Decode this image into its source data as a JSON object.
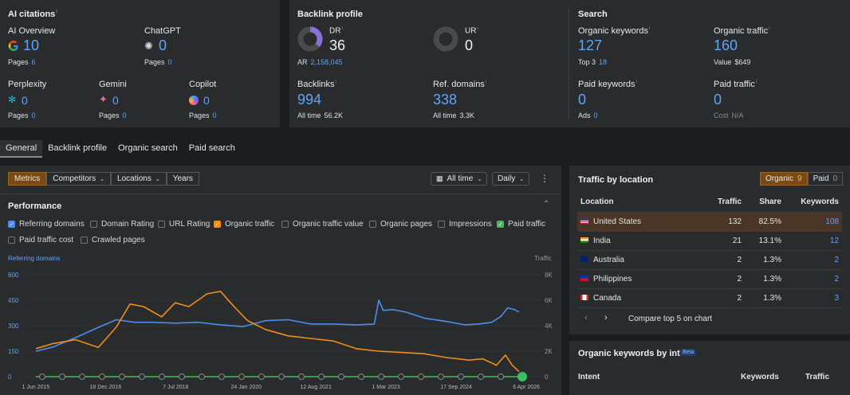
{
  "ai_citations": {
    "title": "AI citations",
    "ai_overview": {
      "label": "AI Overview",
      "value": "10",
      "sub_label": "Pages",
      "sub_value": "6"
    },
    "chatgpt": {
      "label": "ChatGPT",
      "value": "0",
      "sub_label": "Pages",
      "sub_value": "0"
    },
    "perplexity": {
      "label": "Perplexity",
      "value": "0",
      "sub_label": "Pages",
      "sub_value": "0"
    },
    "gemini": {
      "label": "Gemini",
      "value": "0",
      "sub_label": "Pages",
      "sub_value": "0"
    },
    "copilot": {
      "label": "Copilot",
      "value": "0",
      "sub_label": "Pages",
      "sub_value": "0"
    }
  },
  "backlink_profile": {
    "title": "Backlink profile",
    "dr": {
      "label": "DR",
      "value": "36",
      "fill": 0.36
    },
    "ar": {
      "label": "AR",
      "value": "2,158,045"
    },
    "ur": {
      "label": "UR",
      "value": "0",
      "fill": 0
    },
    "backlinks": {
      "label": "Backlinks",
      "value": "994",
      "sub_label": "All time",
      "sub_value": "56.2K"
    },
    "ref_domains": {
      "label": "Ref. domains",
      "value": "338",
      "sub_label": "All time",
      "sub_value": "3.3K"
    }
  },
  "search": {
    "title": "Search",
    "organic_keywords": {
      "label": "Organic keywords",
      "value": "127",
      "sub_label": "Top 3",
      "sub_value": "18"
    },
    "organic_traffic": {
      "label": "Organic traffic",
      "value": "160",
      "sub_label": "Value",
      "sub_value": "$649"
    },
    "paid_keywords": {
      "label": "Paid keywords",
      "value": "0",
      "sub_label": "Ads",
      "sub_value": "0"
    },
    "paid_traffic": {
      "label": "Paid traffic",
      "value": "0",
      "sub_label": "Cost",
      "sub_value": "N/A"
    }
  },
  "tabs": [
    "General",
    "Backlink profile",
    "Organic search",
    "Paid search"
  ],
  "toolbar": {
    "segments": [
      "Metrics",
      "Competitors",
      "Locations",
      "Years"
    ],
    "time_range": "All time",
    "interval": "Daily",
    "more": "⋮"
  },
  "performance": {
    "title": "Performance",
    "checkboxes": [
      {
        "label": "Referring domains",
        "checked": true,
        "color": "#4a8ef0"
      },
      {
        "label": "Domain Rating",
        "checked": false
      },
      {
        "label": "URL Rating",
        "checked": false
      },
      {
        "label": "Organic traffic",
        "checked": true,
        "color": "#f08d1c"
      },
      {
        "label": "Organic traffic value",
        "checked": false
      },
      {
        "label": "Organic pages",
        "checked": false
      },
      {
        "label": "Impressions",
        "checked": false
      },
      {
        "label": "Paid traffic",
        "checked": true,
        "color": "#3cbf61"
      },
      {
        "label": "Paid traffic cost",
        "checked": false
      },
      {
        "label": "Crawled pages",
        "checked": false
      }
    ]
  },
  "chart_data": {
    "type": "line",
    "left_axis_label": "Referring domains",
    "right_axis_label": "Traffic",
    "left_ticks": [
      "600",
      "450",
      "300",
      "150",
      "0"
    ],
    "right_ticks": [
      "8K",
      "6K",
      "4K",
      "2K",
      "0"
    ],
    "ylim_left": [
      0,
      600
    ],
    "ylim_right": [
      0,
      8000
    ],
    "x_ticks": [
      "1 Jun 2015",
      "18 Dec 2016",
      "7 Jul 2018",
      "24 Jan 2020",
      "12 Aug 2021",
      "1 Mar 2023",
      "17 Sep 2024",
      "6 Apr 2026"
    ],
    "x_tick_years": [
      2015.42,
      2016.96,
      2018.51,
      2020.07,
      2021.61,
      2023.16,
      2024.71,
      2026.26
    ],
    "xlim": [
      2015.42,
      2026.26
    ],
    "series": [
      {
        "name": "Referring domains",
        "color": "#4a8ef0",
        "axis": "left",
        "x": [
          2015.42,
          2015.8,
          2016.3,
          2016.8,
          2017.2,
          2017.6,
          2018.0,
          2018.5,
          2019.0,
          2019.5,
          2020.0,
          2020.5,
          2021.0,
          2021.5,
          2022.0,
          2022.5,
          2022.9,
          2023.0,
          2023.1,
          2023.3,
          2023.6,
          2024.0,
          2024.5,
          2024.9,
          2025.2,
          2025.5,
          2025.7,
          2025.85,
          2026.0,
          2026.1
        ],
        "y": [
          150,
          175,
          230,
          290,
          335,
          320,
          320,
          315,
          320,
          305,
          295,
          330,
          335,
          310,
          310,
          305,
          310,
          450,
          390,
          395,
          380,
          345,
          325,
          305,
          310,
          320,
          355,
          405,
          395,
          380
        ]
      },
      {
        "name": "Organic traffic",
        "color": "#f08d1c",
        "axis": "right",
        "x": [
          2015.42,
          2015.8,
          2016.3,
          2016.8,
          2017.2,
          2017.5,
          2017.8,
          2018.2,
          2018.5,
          2018.8,
          2019.2,
          2019.5,
          2019.8,
          2020.1,
          2020.5,
          2021.0,
          2021.5,
          2022.0,
          2022.5,
          2023.0,
          2023.5,
          2024.0,
          2024.5,
          2025.0,
          2025.3,
          2025.6,
          2025.8,
          2025.95,
          2026.1
        ],
        "y": [
          2200,
          2600,
          2900,
          2300,
          3900,
          5700,
          5500,
          4700,
          5800,
          5500,
          6500,
          6700,
          5500,
          4400,
          3700,
          3200,
          3000,
          2800,
          2200,
          2000,
          1900,
          1800,
          1500,
          1300,
          1400,
          900,
          1700,
          900,
          400
        ]
      },
      {
        "name": "Paid traffic",
        "color": "#3cbf61",
        "axis": "right",
        "x": [
          2015.42,
          2017.0,
          2018.5,
          2020.0,
          2021.5,
          2023.0,
          2024.5,
          2025.5,
          2026.0,
          2026.26
        ],
        "y": [
          0,
          0,
          0,
          0,
          0,
          0,
          0,
          0,
          0,
          0
        ]
      }
    ]
  },
  "traffic_by_location": {
    "title": "Traffic by location",
    "toggle": [
      {
        "label": "Organic",
        "count": "9",
        "active": true
      },
      {
        "label": "Paid",
        "count": "0",
        "active": false
      }
    ],
    "columns": [
      "Location",
      "Traffic",
      "Share",
      "Keywords"
    ],
    "rows": [
      {
        "country": "United States",
        "traffic": "132",
        "share": "82.5%",
        "keywords": "108",
        "flag": "us"
      },
      {
        "country": "India",
        "traffic": "21",
        "share": "13.1%",
        "keywords": "12",
        "flag": "in"
      },
      {
        "country": "Australia",
        "traffic": "2",
        "share": "1.3%",
        "keywords": "2",
        "flag": "au"
      },
      {
        "country": "Philippines",
        "traffic": "2",
        "share": "1.3%",
        "keywords": "2",
        "flag": "ph"
      },
      {
        "country": "Canada",
        "traffic": "2",
        "share": "1.3%",
        "keywords": "3",
        "flag": "ca"
      }
    ],
    "compare_label": "Compare top 5 on chart"
  },
  "keywords_by_intent": {
    "title": "Organic keywords by intent",
    "badge": "Beta",
    "columns": [
      "Intent",
      "Keywords",
      "Traffic"
    ]
  },
  "colors": {
    "accent_blue": "#5ea4ff",
    "orange": "#f08d1c",
    "green": "#3cbf61",
    "panel": "#2a2b2d"
  }
}
